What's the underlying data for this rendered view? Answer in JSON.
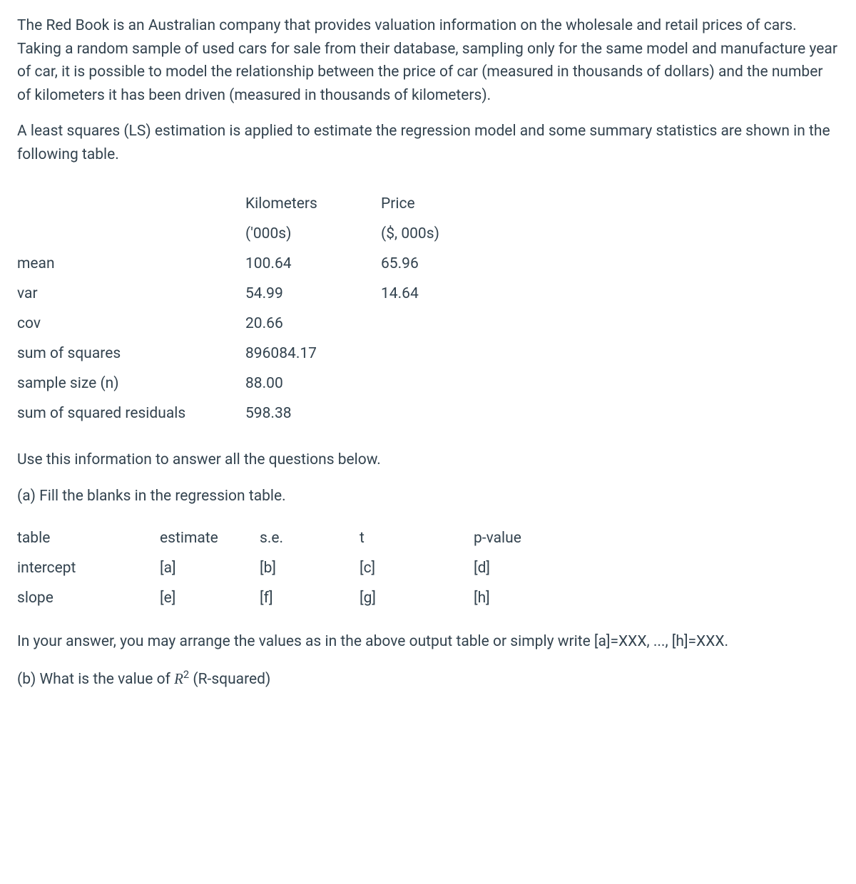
{
  "intro_p1": "The Red Book is an Australian company that provides valuation information on the wholesale and retail prices of cars. Taking a random sample of used cars for sale from their database, sampling only for the same model and manufacture year of car, it is possible to model the relationship between the price of car (measured in thousands of dollars) and the number of kilometers it has been driven (measured in thousands of kilometers).",
  "intro_p2": "A least squares (LS) estimation is applied to estimate the regression model and some summary statistics are shown in the following table.",
  "summary": {
    "headers": {
      "km_line1": "Kilometers",
      "km_line2": "('000s)",
      "price_line1": "Price",
      "price_line2": "($, 000s)"
    },
    "rows": [
      {
        "label": "mean",
        "km": "100.64",
        "price": "65.96"
      },
      {
        "label": "var",
        "km": "54.99",
        "price": "14.64"
      },
      {
        "label": "cov",
        "km": "20.66",
        "price": ""
      },
      {
        "label": "sum of squares",
        "km": "896084.17",
        "price": ""
      },
      {
        "label": "sample size (n)",
        "km": "88.00",
        "price": ""
      },
      {
        "label": "sum of squared residuals",
        "km": "598.38",
        "price": ""
      }
    ]
  },
  "instruction": "Use this information to answer all the questions below.",
  "part_a": "(a) Fill the blanks in the regression table.",
  "reg": {
    "headers": {
      "c1": "table",
      "c2": "estimate",
      "c3": "s.e.",
      "c4": "t",
      "c5": "p-value"
    },
    "rows": [
      {
        "c1": "intercept",
        "c2": "[a]",
        "c3": "[b]",
        "c4": "[c]",
        "c5": "[d]"
      },
      {
        "c1": "slope",
        "c2": "[e]",
        "c3": "[f]",
        "c4": "[g]",
        "c5": "[h]"
      }
    ]
  },
  "note": "In your answer, you may arrange the values as in the above output table or simply write [a]=XXX, ..., [h]=XXX.",
  "part_b_prefix": "(b) What is the value of ",
  "part_b_var": "R",
  "part_b_sup": "2",
  "part_b_suffix": " (R-squared)"
}
